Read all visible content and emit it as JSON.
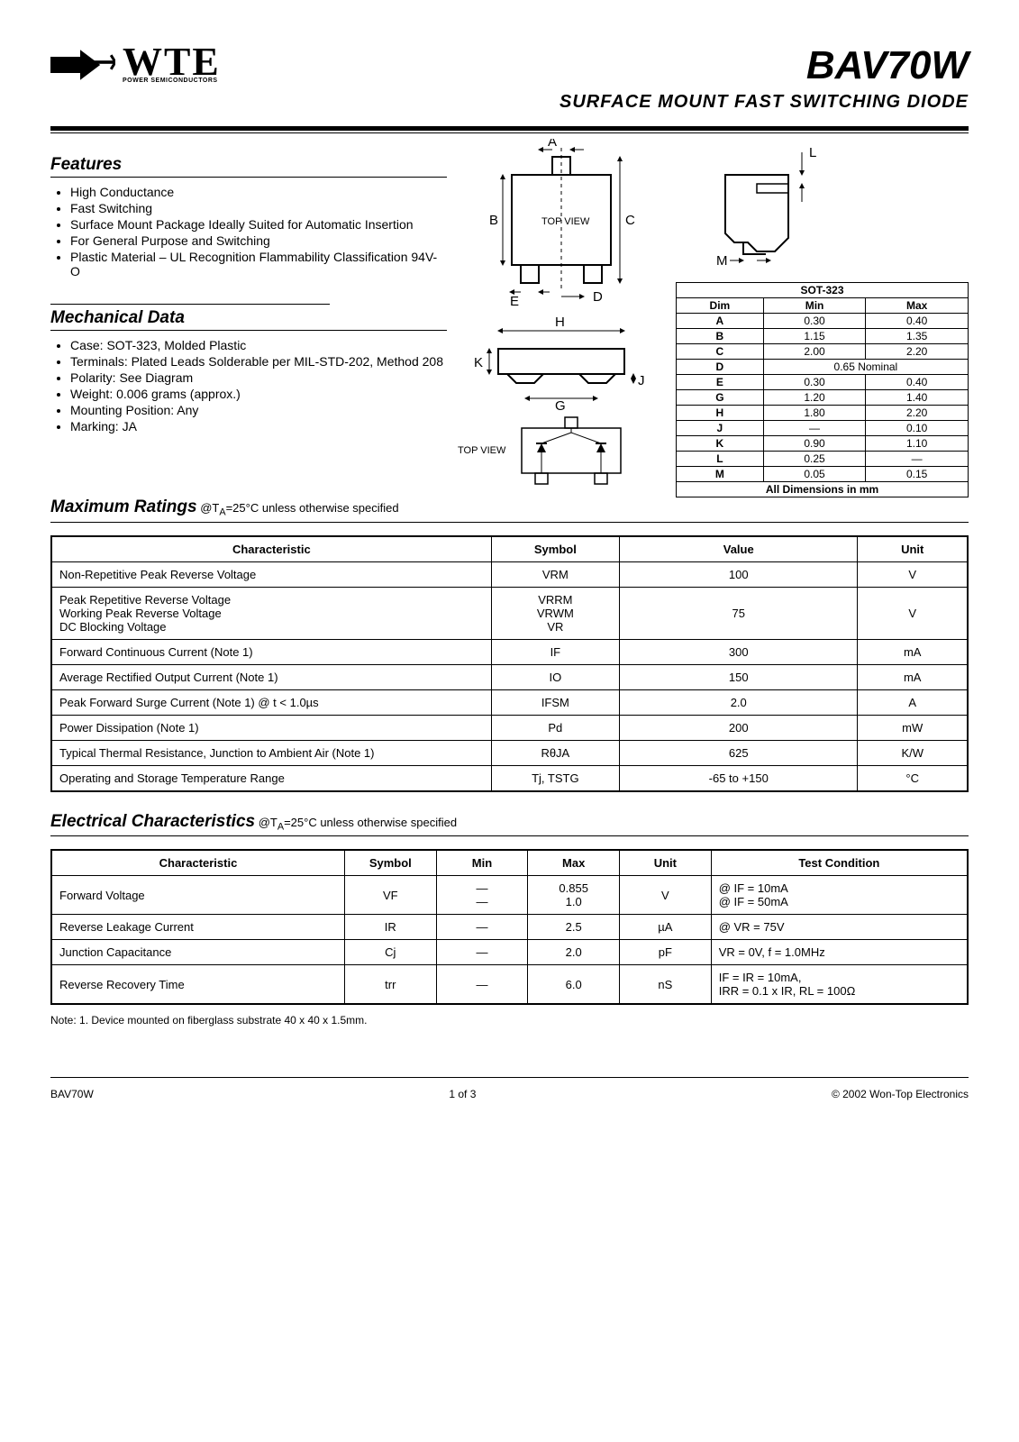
{
  "header": {
    "logo_text": "WTE",
    "logo_subtext": "POWER SEMICONDUCTORS",
    "part_number": "BAV70W",
    "subtitle": "SURFACE MOUNT FAST SWITCHING DIODE"
  },
  "features": {
    "title": "Features",
    "items": [
      "High Conductance",
      "Fast Switching",
      "Surface Mount Package Ideally Suited for Automatic Insertion",
      "For General Purpose and Switching",
      "Plastic Material – UL Recognition Flammability Classification 94V-O"
    ]
  },
  "mechanical": {
    "title": "Mechanical Data",
    "items": [
      "Case: SOT-323, Molded Plastic",
      "Terminals: Plated Leads Solderable per MIL-STD-202, Method 208",
      "Polarity: See Diagram",
      "Weight: 0.006 grams (approx.)",
      "Mounting Position: Any",
      "Marking: JA"
    ]
  },
  "diagram_labels": {
    "A": "A",
    "B": "B",
    "C": "C",
    "D": "D",
    "E": "E",
    "G": "G",
    "H": "H",
    "J": "J",
    "K": "K",
    "L": "L",
    "M": "M",
    "top_view_1": "TOP VIEW",
    "top_view_2": "TOP VIEW"
  },
  "dimensions": {
    "title": "SOT-323",
    "header": [
      "Dim",
      "Min",
      "Max"
    ],
    "rows": [
      [
        "A",
        "0.30",
        "0.40"
      ],
      [
        "B",
        "1.15",
        "1.35"
      ],
      [
        "C",
        "2.00",
        "2.20"
      ],
      [
        "D",
        "0.65 Nominal",
        ""
      ],
      [
        "E",
        "0.30",
        "0.40"
      ],
      [
        "G",
        "1.20",
        "1.40"
      ],
      [
        "H",
        "1.80",
        "2.20"
      ],
      [
        "J",
        "—",
        "0.10"
      ],
      [
        "K",
        "0.90",
        "1.10"
      ],
      [
        "L",
        "0.25",
        "—"
      ],
      [
        "M",
        "0.05",
        "0.15"
      ]
    ],
    "footer": "All Dimensions in mm"
  },
  "ratings": {
    "title": "Maximum Ratings",
    "subtitle": "@TA=25°C unless otherwise specified",
    "columns": [
      "Characteristic",
      "Symbol",
      "Value",
      "Unit"
    ],
    "rows": [
      {
        "char": "Non-Repetitive Peak Reverse Voltage",
        "sym": "VRM",
        "val": "100",
        "unit": "V"
      },
      {
        "char": "Peak Repetitive Reverse Voltage\nWorking Peak Reverse Voltage\nDC Blocking Voltage",
        "sym": "VRRM\nVRWM\nVR",
        "val": "75",
        "unit": "V"
      },
      {
        "char": "Forward Continuous Current (Note 1)",
        "sym": "IF",
        "val": "300",
        "unit": "mA"
      },
      {
        "char": "Average Rectified Output Current (Note 1)",
        "sym": "IO",
        "val": "150",
        "unit": "mA"
      },
      {
        "char": "Peak Forward Surge Current (Note 1)            @ t < 1.0µs",
        "sym": "IFSM",
        "val": "2.0",
        "unit": "A"
      },
      {
        "char": "Power Dissipation (Note 1)",
        "sym": "Pd",
        "val": "200",
        "unit": "mW"
      },
      {
        "char": "Typical Thermal Resistance, Junction to Ambient Air (Note 1)",
        "sym": "RθJA",
        "val": "625",
        "unit": "K/W"
      },
      {
        "char": "Operating and Storage Temperature Range",
        "sym": "Tj, TSTG",
        "val": "-65 to +150",
        "unit": "°C"
      }
    ]
  },
  "electrical": {
    "title": "Electrical Characteristics",
    "subtitle": "@TA=25°C unless otherwise specified",
    "columns": [
      "Characteristic",
      "Symbol",
      "Min",
      "Max",
      "Unit",
      "Test Condition"
    ],
    "rows": [
      {
        "char": "Forward Voltage",
        "sym": "VF",
        "min": "—\n—",
        "max": "0.855\n1.0",
        "unit": "V",
        "cond": "@ IF = 10mA\n@ IF = 50mA"
      },
      {
        "char": "Reverse Leakage Current",
        "sym": "IR",
        "min": "—",
        "max": "2.5",
        "unit": "µA",
        "cond": "@ VR = 75V"
      },
      {
        "char": "Junction Capacitance",
        "sym": "Cj",
        "min": "—",
        "max": "2.0",
        "unit": "pF",
        "cond": "VR = 0V, f = 1.0MHz"
      },
      {
        "char": "Reverse Recovery Time",
        "sym": "trr",
        "min": "—",
        "max": "6.0",
        "unit": "nS",
        "cond": "IF = IR = 10mA,\nIRR = 0.1 x IR, RL = 100Ω"
      }
    ]
  },
  "note": "Note:  1. Device mounted on fiberglass substrate 40 x 40 x 1.5mm.",
  "footer": {
    "left": "BAV70W",
    "center": "1 of 3",
    "right": "© 2002 Won-Top Electronics"
  },
  "colors": {
    "text": "#000000",
    "bg": "#ffffff",
    "rule": "#000000"
  }
}
